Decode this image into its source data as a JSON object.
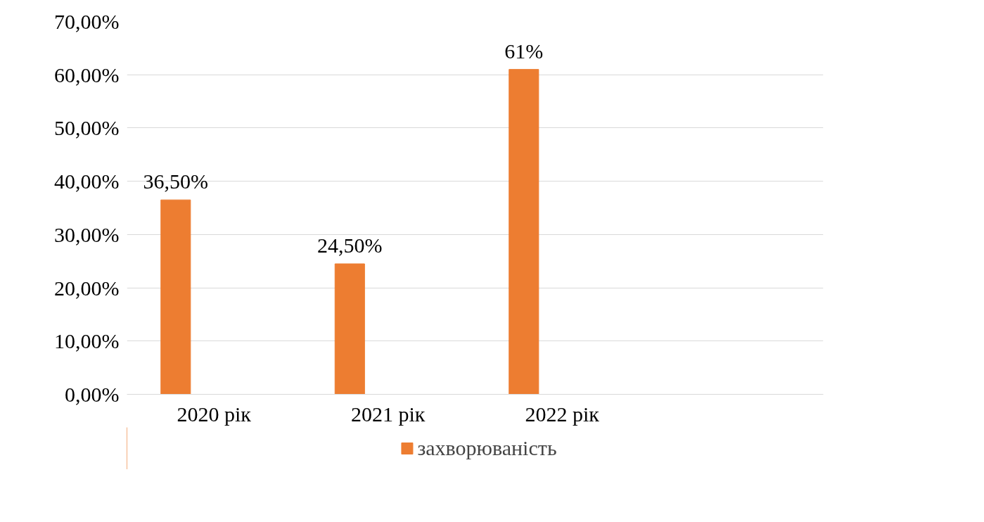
{
  "chart_data": {
    "type": "bar",
    "categories": [
      "2020 рік",
      "2021 рік",
      "2022 рік",
      null
    ],
    "series": [
      {
        "name": "захворюваність",
        "color": "#ed7d31",
        "values": [
          36.5,
          24.5,
          61,
          null
        ],
        "value_labels": [
          "36,50%",
          "24,50%",
          "61%",
          null
        ]
      }
    ],
    "ylim": [
      0,
      70
    ],
    "yticks": [
      {
        "value": 0,
        "label": "0,00%"
      },
      {
        "value": 10,
        "label": "10,00%"
      },
      {
        "value": 20,
        "label": "20,00%"
      },
      {
        "value": 30,
        "label": "30,00%"
      },
      {
        "value": 40,
        "label": "40,00%"
      },
      {
        "value": 50,
        "label": "50,00%"
      },
      {
        "value": 60,
        "label": "60,00%"
      },
      {
        "value": 70,
        "label": "70,00%"
      }
    ],
    "grid": "y",
    "legend": "bottom"
  }
}
